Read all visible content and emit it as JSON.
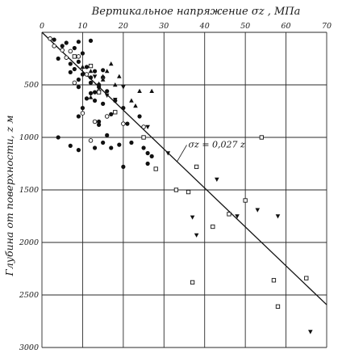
{
  "chart_data": {
    "type": "scatter",
    "title": "Вертикальное напряжение σz , МПа",
    "xlabel": "",
    "ylabel": "Глубина от поверхности, z м",
    "xlim": [
      0,
      70
    ],
    "ylim": [
      0,
      3000
    ],
    "x_axis_position": "top",
    "y_inverted": true,
    "grid": true,
    "x_ticks": [
      "0",
      "10",
      "20",
      "30",
      "40",
      "50",
      "60",
      "70"
    ],
    "y_ticks": [
      "500",
      "1000",
      "1500",
      "2000",
      "2500",
      "3000"
    ],
    "trend_line": {
      "label": "σz = 0,027 z",
      "slope": 0.027,
      "x": [
        0,
        70
      ],
      "y": [
        0,
        2593
      ]
    },
    "series": [
      {
        "marker": "filled-circle",
        "x": [
          3,
          4,
          5,
          6,
          7,
          8,
          9,
          9,
          10,
          10,
          11,
          12,
          12,
          13,
          13,
          14,
          14,
          15,
          15,
          16,
          17,
          18,
          8,
          9,
          11,
          12,
          10,
          9,
          4,
          7,
          13,
          15,
          16,
          17,
          19,
          20,
          9,
          13,
          14,
          12,
          21,
          22,
          25,
          26,
          26,
          27,
          7,
          9,
          20,
          24,
          14
        ],
        "y": [
          70,
          250,
          130,
          100,
          300,
          150,
          280,
          90,
          400,
          200,
          330,
          430,
          80,
          370,
          570,
          500,
          850,
          680,
          360,
          560,
          780,
          650,
          350,
          520,
          630,
          580,
          720,
          800,
          1000,
          1080,
          1100,
          1050,
          980,
          1100,
          1070,
          1280,
          1120,
          650,
          520,
          480,
          870,
          1050,
          1100,
          1150,
          1250,
          1180,
          380,
          450,
          720,
          800,
          880
        ]
      },
      {
        "marker": "open-circle",
        "x": [
          2,
          3,
          5,
          7,
          9,
          11,
          14,
          10,
          6,
          8,
          16,
          13,
          20,
          25,
          15,
          12
        ],
        "y": [
          60,
          130,
          170,
          180,
          230,
          400,
          560,
          770,
          240,
          480,
          800,
          850,
          870,
          900,
          430,
          1030
        ]
      },
      {
        "marker": "filled-triangle",
        "x": [
          12,
          14,
          15,
          16,
          17,
          18,
          19,
          22,
          23,
          24,
          27,
          12,
          15,
          10
        ],
        "y": [
          370,
          490,
          450,
          370,
          300,
          500,
          420,
          650,
          700,
          560,
          560,
          620,
          420,
          330
        ]
      },
      {
        "marker": "filled-triangle-down",
        "x": [
          13,
          16,
          18,
          20,
          26,
          31,
          37,
          38,
          43,
          48,
          53,
          58,
          66
        ],
        "y": [
          420,
          600,
          640,
          520,
          900,
          1150,
          1760,
          1930,
          1400,
          1750,
          1690,
          1750,
          2850
        ]
      },
      {
        "marker": "square",
        "x": [
          8,
          12,
          14,
          18,
          25,
          28,
          33,
          36,
          38,
          42,
          46,
          50,
          54,
          57,
          58,
          65,
          37
        ],
        "y": [
          230,
          320,
          570,
          760,
          1000,
          1300,
          1500,
          1520,
          1280,
          1850,
          1730,
          1600,
          1000,
          2360,
          2610,
          2340,
          2380
        ]
      }
    ]
  }
}
